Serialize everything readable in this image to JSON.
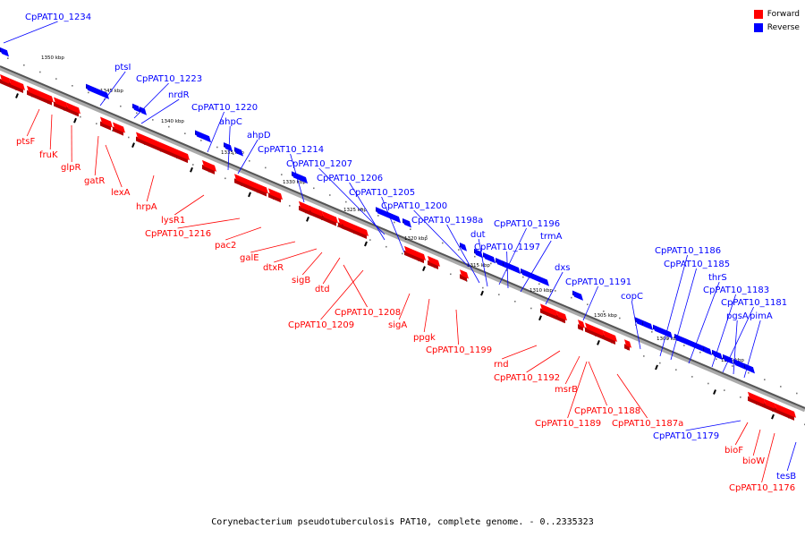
{
  "legend": {
    "forward_label": "Forward",
    "reverse_label": "Reverse",
    "forward_color": "#ff0000",
    "reverse_color": "#0000ff"
  },
  "caption": "Corynebacterium pseudotuberculosis PAT10, complete genome. - 0..2335323",
  "scale": {
    "ticks": [
      "1350 kbp",
      "1345 kbp",
      "1340 kbp",
      "1335 kbp",
      "1330 kbp",
      "1325 kbp",
      "1320 kbp",
      "1315 kbp",
      "1310 kbp",
      "1305 kbp",
      "1300 kbp",
      "1295 kbp"
    ]
  },
  "reverse_genes": [
    "CpPAT10_1234",
    "ptsI",
    "CpPAT10_1223",
    "nrdR",
    "CpPAT10_1220",
    "ahpC",
    "ahpD",
    "CpPAT10_1214",
    "CpPAT10_1207",
    "CpPAT10_1206",
    "CpPAT10_1205",
    "CpPAT10_1200",
    "CpPAT10_1198a",
    "dut",
    "CpPAT10_1196",
    "CpPAT10_1197",
    "trmA",
    "dxs",
    "CpPAT10_1191",
    "copC",
    "CpPAT10_1186",
    "CpPAT10_1185",
    "thrS",
    "CpPAT10_1183",
    "CpPAT10_1181",
    "pgsA",
    "pimA",
    "CpPAT10_1179",
    "tesB"
  ],
  "forward_genes": [
    "ptsF",
    "fruK",
    "glpR",
    "gatR",
    "lexA",
    "hrpA",
    "lysR1",
    "CpPAT10_1216",
    "pac2",
    "galE",
    "dtxR",
    "sigB",
    "dtd",
    "CpPAT10_1208",
    "CpPAT10_1209",
    "sigA",
    "ppgk",
    "CpPAT10_1199",
    "rnd",
    "CpPAT10_1192",
    "msrB",
    "CpPAT10_1188",
    "CpPAT10_1189",
    "CpPAT10_1187a",
    "bioF",
    "bioW",
    "CpPAT10_1176"
  ]
}
